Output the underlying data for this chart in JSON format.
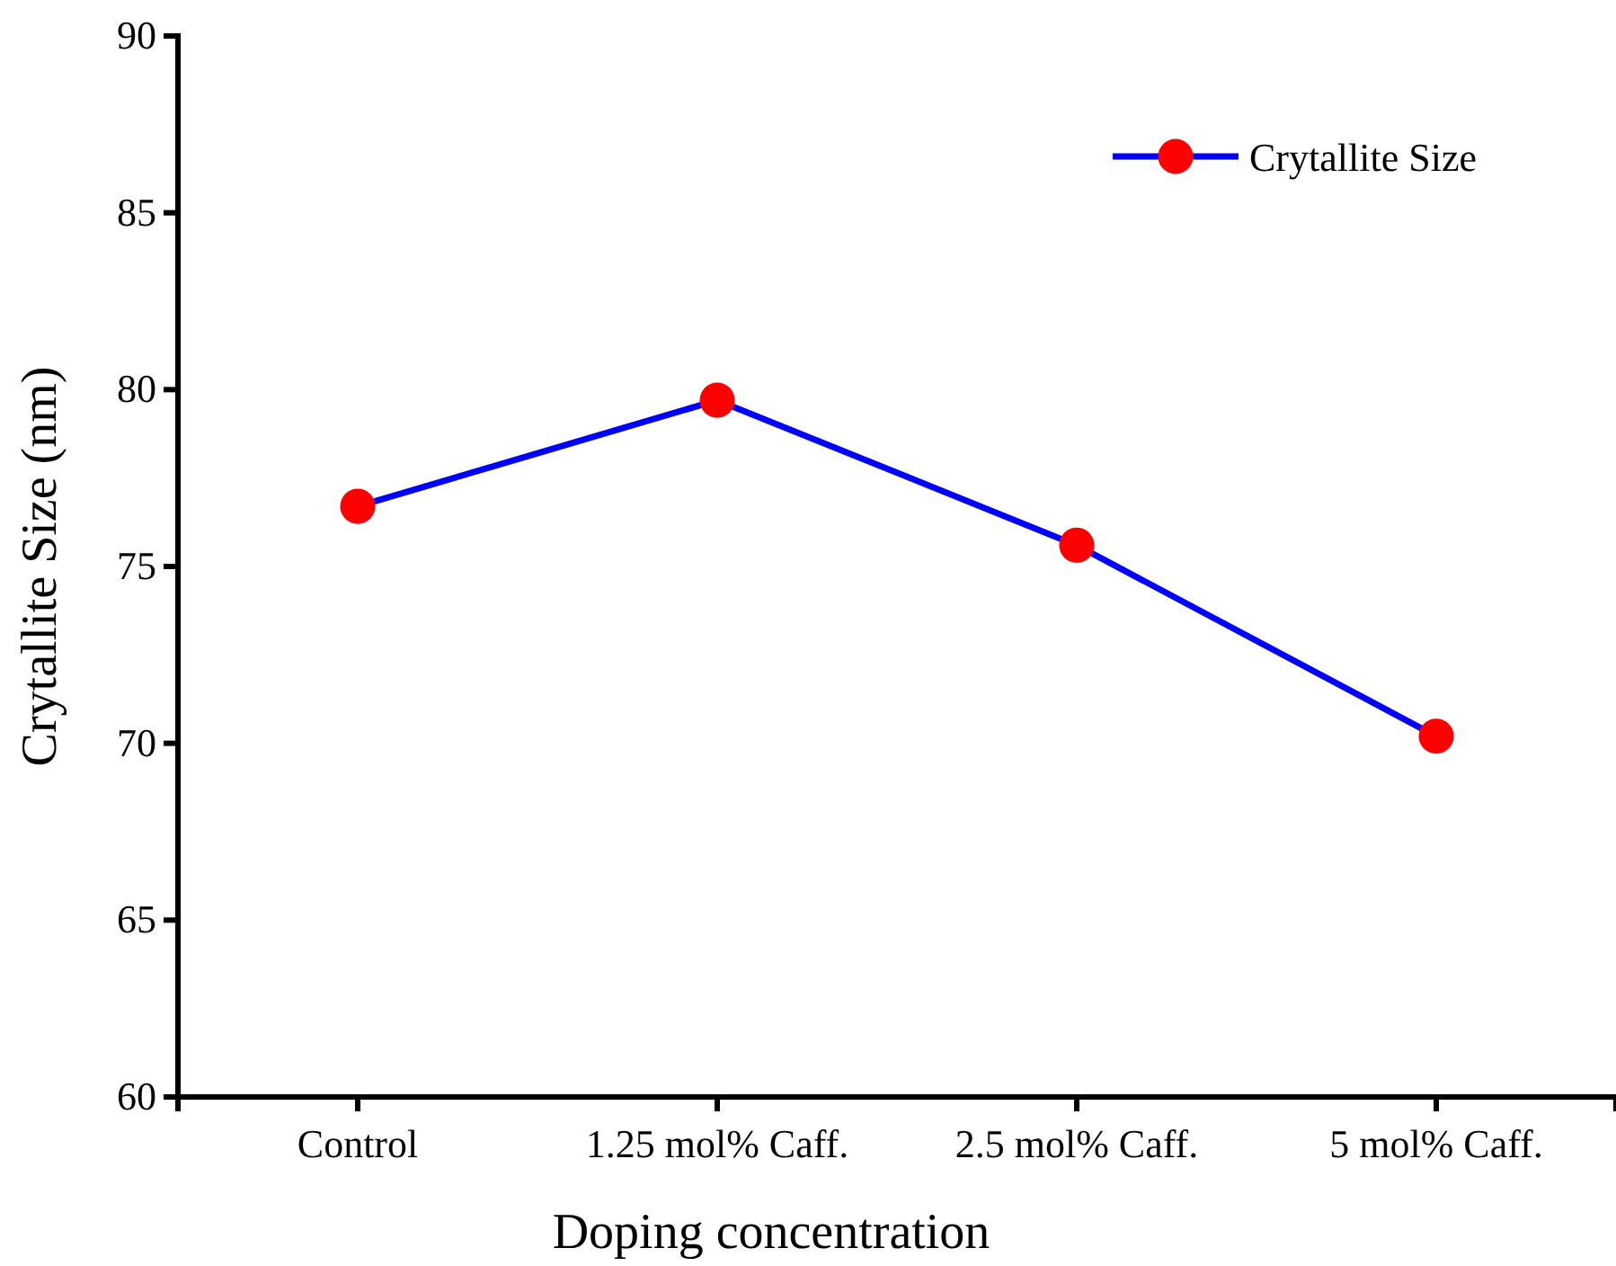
{
  "chart_data": {
    "type": "line",
    "xlabel": "Doping concentration",
    "ylabel": "Crytallite Size (nm)",
    "categories": [
      "Control",
      "1.25 mol% Caff.",
      "2.5 mol% Caff.",
      "5 mol% Caff."
    ],
    "series": [
      {
        "name": "Crytallite Size",
        "color": "#0000ff",
        "colors": [
          "#ff0000",
          "#ff0000",
          "#ff0000",
          "#ff0000"
        ],
        "values": [
          76.7,
          79.7,
          75.6,
          70.2
        ]
      }
    ],
    "ylim": [
      60,
      90
    ],
    "yticks": [
      60,
      65,
      70,
      75,
      80,
      85,
      90
    ],
    "marker": "circle",
    "line_style": "solid",
    "legend": "top right",
    "grid": false
  }
}
